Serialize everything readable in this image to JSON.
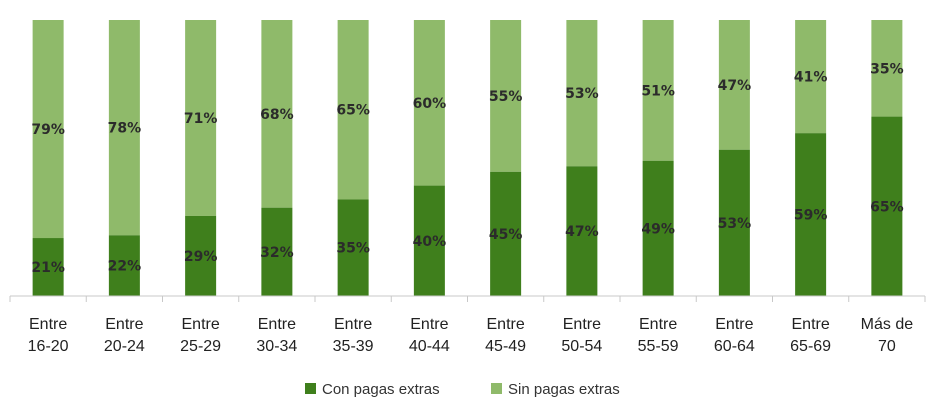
{
  "chart_data": {
    "type": "bar",
    "stacked": true,
    "percent_stacked": true,
    "categories": [
      [
        "Entre",
        "16-20"
      ],
      [
        "Entre",
        "20-24"
      ],
      [
        "Entre",
        "25-29"
      ],
      [
        "Entre",
        "30-34"
      ],
      [
        "Entre",
        "35-39"
      ],
      [
        "Entre",
        "40-44"
      ],
      [
        "Entre",
        "45-49"
      ],
      [
        "Entre",
        "50-54"
      ],
      [
        "Entre",
        "55-59"
      ],
      [
        "Entre",
        "60-64"
      ],
      [
        "Entre",
        "65-69"
      ],
      [
        "Más de",
        "70"
      ]
    ],
    "series": [
      {
        "name": "Con pagas extras",
        "color": "#3f7f1c",
        "values": [
          21,
          22,
          29,
          32,
          35,
          40,
          45,
          47,
          49,
          53,
          59,
          65
        ],
        "labels": [
          "21%",
          "22%",
          "29%",
          "32%",
          "35%",
          "40%",
          "45%",
          "47%",
          "49%",
          "53%",
          "59%",
          "65%"
        ]
      },
      {
        "name": "Sin pagas extras",
        "color": "#8fba6a",
        "values": [
          79,
          78,
          71,
          68,
          65,
          60,
          55,
          53,
          51,
          47,
          41,
          35
        ],
        "labels": [
          "79%",
          "78%",
          "71%",
          "68%",
          "65%",
          "60%",
          "55%",
          "53%",
          "51%",
          "47%",
          "41%",
          "35%"
        ]
      }
    ],
    "ylim": [
      0,
      100
    ],
    "grid": false,
    "legend": "bottom",
    "axis_color": "#c8c8c8"
  }
}
